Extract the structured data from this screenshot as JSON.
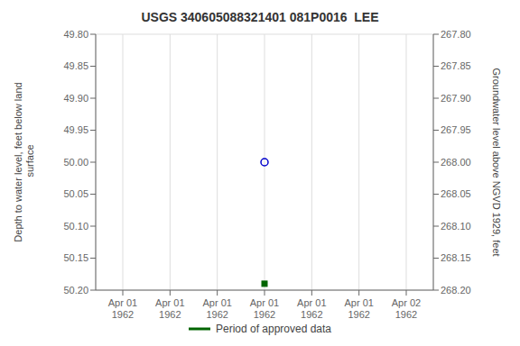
{
  "chart_data": {
    "type": "scatter",
    "title": "USGS 340605088321401 081P0016  LEE",
    "ylabel": "Depth to water level, feet below land\n surface",
    "y2label": "Groundwater level above NGVD 1929, feet",
    "categories": [
      "Apr 01\n1962",
      "Apr 01\n1962",
      "Apr 01\n1962",
      "Apr 01\n1962",
      "Apr 01\n1962",
      "Apr 01\n1962",
      "Apr 02\n1962"
    ],
    "ylim": [
      50.2,
      49.8
    ],
    "yticks": [
      {
        "value": 49.8,
        "label": "49.80"
      },
      {
        "value": 49.85,
        "label": "49.85"
      },
      {
        "value": 49.9,
        "label": "49.90"
      },
      {
        "value": 49.95,
        "label": "49.95"
      },
      {
        "value": 50.0,
        "label": "50.00"
      },
      {
        "value": 50.05,
        "label": "50.05"
      },
      {
        "value": 50.1,
        "label": "50.10"
      },
      {
        "value": 50.15,
        "label": "50.15"
      },
      {
        "value": 50.2,
        "label": "50.20"
      }
    ],
    "y2lim": [
      268.2,
      267.8
    ],
    "y2ticks": [
      {
        "value": 267.8,
        "label": "267.80"
      },
      {
        "value": 267.85,
        "label": "267.85"
      },
      {
        "value": 267.9,
        "label": "267.90"
      },
      {
        "value": 267.95,
        "label": "267.95"
      },
      {
        "value": 268.0,
        "label": "268.00"
      },
      {
        "value": 268.05,
        "label": "268.05"
      },
      {
        "value": 268.1,
        "label": "268.10"
      },
      {
        "value": 268.15,
        "label": "268.15"
      },
      {
        "value": 268.2,
        "label": "268.20"
      }
    ],
    "grid": true,
    "legend": "bottom",
    "series": [
      {
        "color": "#0000cc",
        "marker": "circle_open",
        "values": [
          null,
          null,
          null,
          50.0,
          null,
          null,
          null
        ]
      },
      {
        "name": "Period of approved data",
        "color": "#006400",
        "marker": "square",
        "values": [
          null,
          null,
          null,
          50.19,
          null,
          null,
          null
        ]
      }
    ]
  }
}
